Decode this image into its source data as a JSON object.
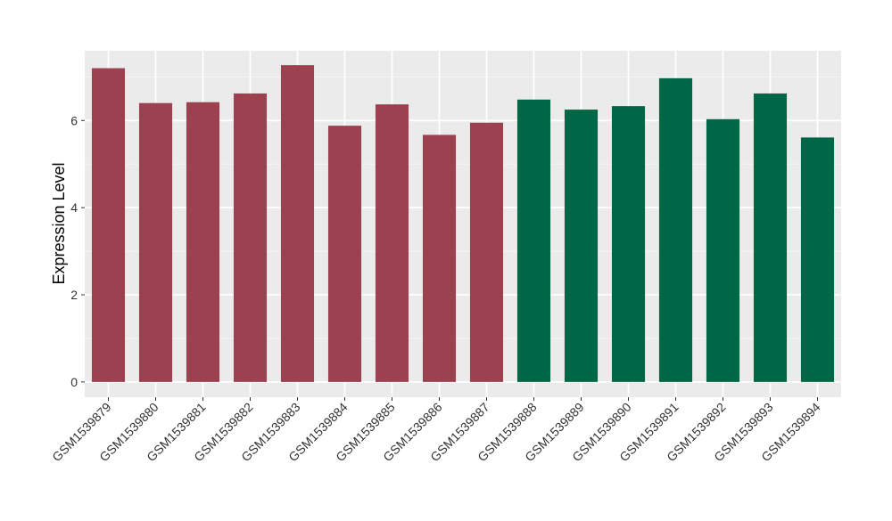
{
  "chart_data": {
    "type": "bar",
    "title": "",
    "xlabel": "",
    "ylabel": "Expression Level",
    "ylim": [
      -0.35,
      7.6
    ],
    "yticks": [
      0,
      2,
      4,
      6
    ],
    "grid": true,
    "categories": [
      "GSM1539879",
      "GSM1539880",
      "GSM1539881",
      "GSM1539882",
      "GSM1539883",
      "GSM1539884",
      "GSM1539885",
      "GSM1539886",
      "GSM1539887",
      "GSM1539888",
      "GSM1539889",
      "GSM1539890",
      "GSM1539891",
      "GSM1539892",
      "GSM1539893",
      "GSM1539894"
    ],
    "values": [
      7.2,
      6.4,
      6.42,
      6.62,
      7.27,
      5.88,
      6.37,
      5.67,
      5.95,
      6.48,
      6.25,
      6.33,
      6.97,
      6.03,
      6.62,
      5.61
    ],
    "groups": [
      0,
      0,
      0,
      0,
      0,
      0,
      0,
      0,
      0,
      1,
      1,
      1,
      1,
      1,
      1,
      1
    ],
    "colors": [
      "#9b4150",
      "#006746"
    ],
    "panel_background": "#ebebeb"
  }
}
